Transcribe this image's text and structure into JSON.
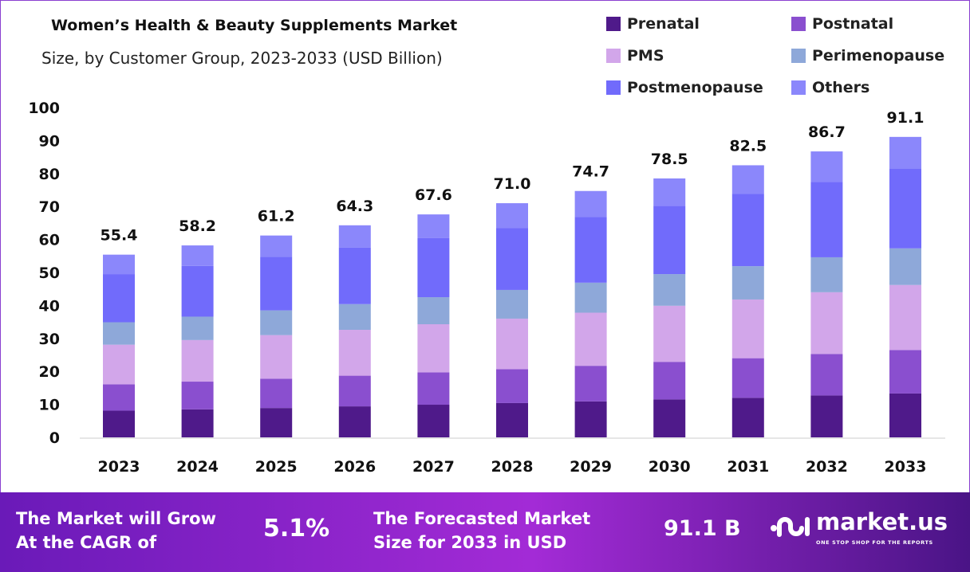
{
  "chart_data": {
    "type": "bar",
    "stacked": true,
    "title": "Women’s Health & Beauty Supplements Market",
    "subtitle": "Size, by Customer Group, 2023-2033 (USD Billion)",
    "categories": [
      "2023",
      "2024",
      "2025",
      "2026",
      "2027",
      "2028",
      "2029",
      "2030",
      "2031",
      "2032",
      "2033"
    ],
    "totals": [
      "55.4",
      "58.2",
      "61.2",
      "64.3",
      "67.6",
      "71.0",
      "74.7",
      "78.5",
      "82.5",
      "86.7",
      "91.1"
    ],
    "series": [
      {
        "name": "Prenatal",
        "color": "#4f1a8a",
        "values": [
          8.1,
          8.5,
          8.9,
          9.4,
          9.9,
          10.4,
          10.9,
          11.5,
          12.0,
          12.7,
          13.3
        ]
      },
      {
        "name": "Postnatal",
        "color": "#8a4fcf",
        "values": [
          8.0,
          8.4,
          8.9,
          9.3,
          9.8,
          10.3,
          10.8,
          11.4,
          12.0,
          12.6,
          13.2
        ]
      },
      {
        "name": "PMS",
        "color": "#d2a6ea",
        "values": [
          12.0,
          12.6,
          13.2,
          13.9,
          14.6,
          15.3,
          16.1,
          17.0,
          17.8,
          18.7,
          19.7
        ]
      },
      {
        "name": "Perimenopause",
        "color": "#8ea8d9",
        "values": [
          6.8,
          7.1,
          7.5,
          7.8,
          8.2,
          8.7,
          9.1,
          9.6,
          10.1,
          10.6,
          11.1
        ]
      },
      {
        "name": "Postmenopause",
        "color": "#716bfb",
        "values": [
          14.6,
          15.4,
          16.2,
          17.1,
          17.9,
          18.8,
          19.9,
          20.7,
          21.9,
          22.9,
          24.1
        ]
      },
      {
        "name": "Others",
        "color": "#8b87fb",
        "values": [
          5.9,
          6.2,
          6.5,
          6.8,
          7.2,
          7.5,
          7.9,
          8.3,
          8.7,
          9.2,
          9.7
        ]
      }
    ],
    "yticks": [
      "0",
      "10",
      "20",
      "30",
      "40",
      "50",
      "60",
      "70",
      "80",
      "90",
      "100"
    ],
    "ylim": [
      0,
      100
    ],
    "grid": false,
    "legend_position": "top-right"
  },
  "banner": {
    "cagr_label_1": "The Market will Grow",
    "cagr_label_2": "At the CAGR of",
    "cagr_value": "5.1%",
    "forecast_label_1": "The Forecasted Market",
    "forecast_label_2": "Size for 2033 in USD",
    "forecast_value": "91.1 B",
    "logo_name": "market.us",
    "logo_tagline": "ONE STOP SHOP FOR THE REPORTS"
  }
}
